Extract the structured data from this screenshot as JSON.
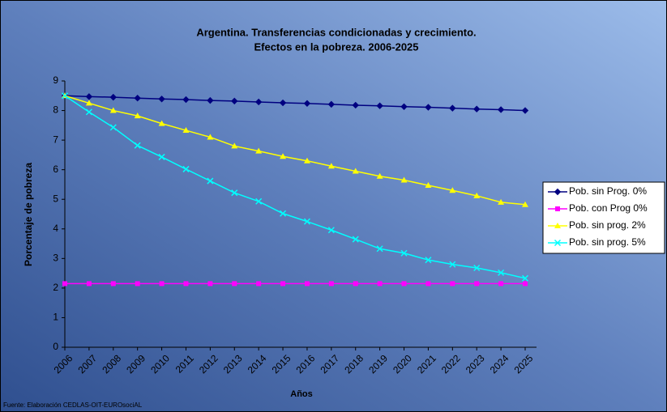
{
  "chart_data": {
    "type": "line",
    "title": "Argentina. Transferencias condicionadas y crecimiento.",
    "subtitle": "Efectos en la pobreza.  2006-2025",
    "x_label": "Años",
    "y_label": "Porcentaje de pobreza",
    "source": "Fuente: Elaboración CEDLAS-OIT-EUROsociAL",
    "categories": [
      "2006",
      "2007",
      "2008",
      "2009",
      "2010",
      "2011",
      "2012",
      "2013",
      "2014",
      "2015",
      "2016",
      "2017",
      "2018",
      "2019",
      "2020",
      "2021",
      "2022",
      "2023",
      "2024",
      "2025"
    ],
    "ylim": [
      0,
      9
    ],
    "yticks": [
      0,
      1,
      2,
      3,
      4,
      5,
      6,
      7,
      8,
      9
    ],
    "grid": false,
    "legend": "right",
    "series": [
      {
        "name": "Pob. sin Prog. 0%",
        "color": "#000080",
        "marker": "diamond",
        "values": [
          8.5,
          8.47,
          8.45,
          8.42,
          8.39,
          8.37,
          8.34,
          8.32,
          8.29,
          8.26,
          8.24,
          8.21,
          8.18,
          8.16,
          8.13,
          8.11,
          8.08,
          8.05,
          8.03,
          8.0
        ]
      },
      {
        "name": "Pob. con Prog  0%",
        "color": "#ff00ff",
        "marker": "square",
        "values": [
          2.15,
          2.15,
          2.15,
          2.15,
          2.15,
          2.15,
          2.15,
          2.15,
          2.15,
          2.15,
          2.15,
          2.15,
          2.15,
          2.15,
          2.15,
          2.15,
          2.15,
          2.15,
          2.15,
          2.15
        ]
      },
      {
        "name": "Pob. sin prog. 2%",
        "color": "#ffff00",
        "marker": "triangle",
        "values": [
          8.5,
          8.25,
          8.0,
          7.82,
          7.56,
          7.33,
          7.1,
          6.8,
          6.63,
          6.45,
          6.3,
          6.12,
          5.95,
          5.78,
          5.65,
          5.47,
          5.3,
          5.12,
          4.9,
          4.82
        ]
      },
      {
        "name": "Pob. sin prog. 5%",
        "color": "#00ffff",
        "marker": "x",
        "values": [
          8.5,
          7.95,
          7.43,
          6.82,
          6.43,
          6.02,
          5.62,
          5.22,
          4.93,
          4.52,
          4.25,
          3.96,
          3.65,
          3.33,
          3.18,
          2.95,
          2.8,
          2.68,
          2.52,
          2.33
        ]
      }
    ]
  }
}
